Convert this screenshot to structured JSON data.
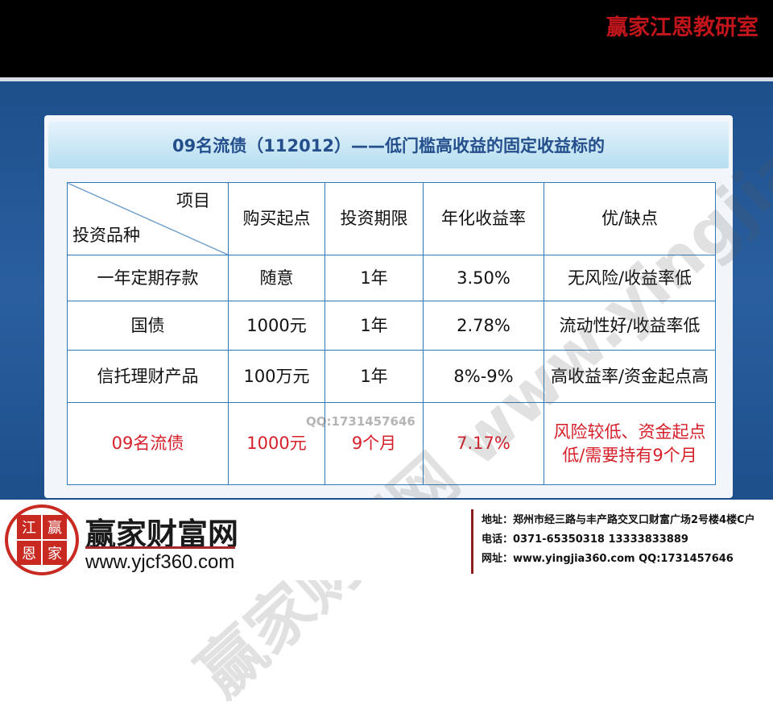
{
  "header": {
    "brand_title": "赢家江恩教研室"
  },
  "slide": {
    "title": "09名流债（112012）——低门槛高收益的固定收益标的",
    "table": {
      "corner_top": "项目",
      "corner_bottom": "投资品种",
      "columns": [
        "购买起点",
        "投资期限",
        "年化收益率",
        "优/缺点"
      ],
      "rows": [
        [
          "一年定期存款",
          "随意",
          "1年",
          "3.50%",
          "无风险/收益率低"
        ],
        [
          "国债",
          "1000元",
          "1年",
          "2.78%",
          "流动性好/收益率低"
        ],
        [
          "信托理财产品",
          "100万元",
          "1年",
          "8%-9%",
          "高收益率/资金起点高"
        ],
        [
          "09名流债",
          "1000元",
          "9个月",
          "7.17%",
          "风险较低、资金起点低/需要持有9个月"
        ]
      ],
      "highlight_color": "#d6202a"
    },
    "watermark": "赢家财富网 www.yingjia360.com",
    "watermark_qq": "QQ:1731457646"
  },
  "footer": {
    "seal_chars": [
      "江",
      "赢",
      "恩",
      "家"
    ],
    "logo_name": "赢家财富网",
    "logo_url": "www.yjcf360.com",
    "address": "地址：郑州市经三路与丰产路交叉口财富广场2号楼4楼C户",
    "phone": "电话：0371-65350318  13333833889",
    "website": "网址：www.yingjia360.com  QQ:1731457646"
  }
}
